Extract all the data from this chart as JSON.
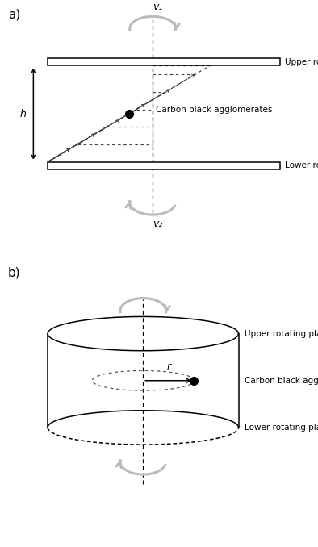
{
  "fig_width": 3.94,
  "fig_height": 6.78,
  "dpi": 100,
  "bg_color": "#ffffff",
  "panel_a_label": "a)",
  "panel_b_label": "b)",
  "label_v1": "v₁",
  "label_v2": "v₂",
  "label_upper": "Upper rotating plate",
  "label_lower": "Lower rotating plate",
  "label_carbon": "Carbon black agglomerates",
  "label_h": "h",
  "label_r": "r",
  "swirl_color": "#bbbbbb",
  "line_color": "#000000",
  "dashed_color": "#444444"
}
